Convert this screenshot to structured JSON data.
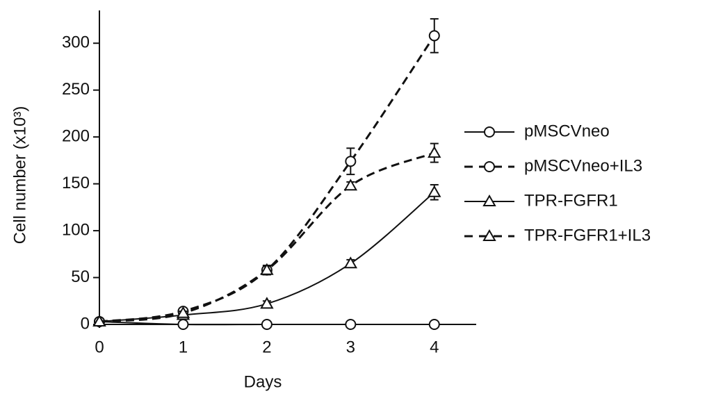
{
  "chart_data": {
    "type": "line",
    "x_label": "Days",
    "y_label": "Cell number (x10³)",
    "x": [
      0,
      1,
      2,
      3,
      4
    ],
    "xlim": [
      0,
      4.5
    ],
    "xticks": [
      0,
      1,
      2,
      3,
      4
    ],
    "ylim": [
      0,
      335
    ],
    "yticks": [
      0,
      50,
      100,
      150,
      200,
      250,
      300
    ],
    "legend": "right",
    "series": [
      {
        "name": "pMSCVneo",
        "color": "#111111",
        "dash": false,
        "marker": "circle",
        "values": [
          3,
          0,
          0,
          0,
          0
        ],
        "errors": [
          0,
          0,
          0,
          0,
          0
        ]
      },
      {
        "name": "pMSCVneo+IL3",
        "color": "#111111",
        "dash": true,
        "marker": "circle",
        "values": [
          3,
          14,
          58,
          174,
          308
        ],
        "errors": [
          0,
          3,
          5,
          14,
          18
        ]
      },
      {
        "name": "TPR-FGFR1",
        "color": "#111111",
        "dash": false,
        "marker": "triangle",
        "values": [
          3,
          10,
          22,
          65,
          141
        ],
        "errors": [
          0,
          2,
          3,
          4,
          8
        ]
      },
      {
        "name": "TPR-FGFR1+IL3",
        "color": "#111111",
        "dash": true,
        "marker": "triangle",
        "values": [
          3,
          12,
          58,
          148,
          183
        ],
        "errors": [
          0,
          2,
          4,
          4,
          10
        ]
      }
    ]
  }
}
